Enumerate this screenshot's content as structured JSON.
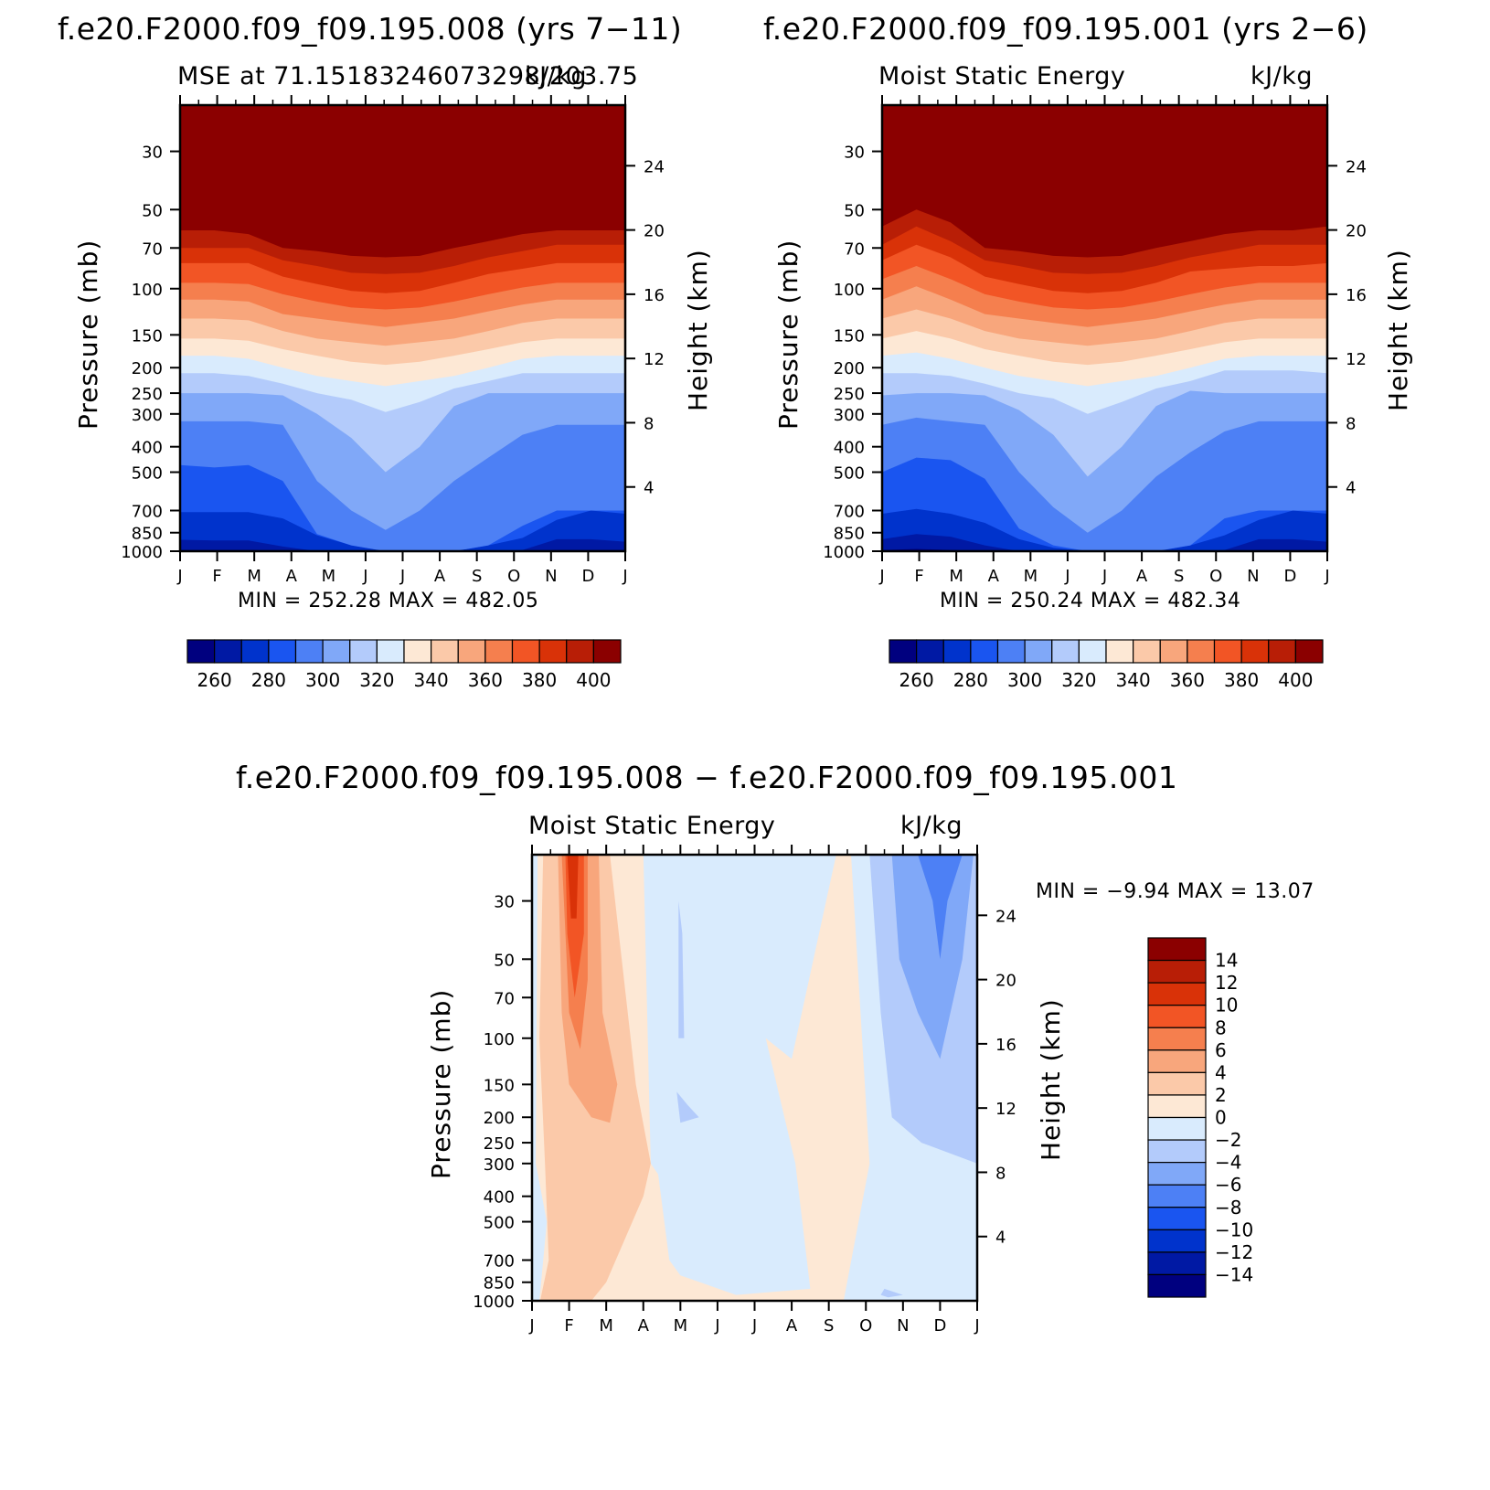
{
  "chart_data": [
    {
      "type": "contour",
      "id": "p1",
      "title": "f.e20.F2000.f09_f09.195.008 (yrs 7−11)",
      "left_label": "MSE at 71.15183246073298/203.75",
      "right_label": "kJ/kg",
      "xlabel": "",
      "ylabel": "Pressure (mb)",
      "ylabel_right": "Height (km)",
      "x_ticks": [
        "J",
        "F",
        "M",
        "A",
        "M",
        "J",
        "J",
        "A",
        "S",
        "O",
        "N",
        "D",
        "J"
      ],
      "y_ticks": [
        30,
        50,
        70,
        100,
        150,
        200,
        250,
        300,
        400,
        500,
        700,
        850,
        1000
      ],
      "y_ticks_right": [
        24,
        20,
        16,
        12,
        8,
        4
      ],
      "ylim": [
        1000,
        20
      ],
      "minmax_text": "MIN = 252.28 MAX = 482.05",
      "levels": [
        260,
        270,
        280,
        290,
        300,
        310,
        320,
        330,
        340,
        350,
        360,
        370,
        380,
        390,
        400
      ],
      "colorbar_labels": [
        "260",
        "280",
        "300",
        "320",
        "340",
        "360",
        "380",
        "400"
      ],
      "boundaries_pressure_mb": [
        [
          990,
          990,
          990,
          995,
          1000,
          1000,
          1000,
          1000,
          1000,
          1000,
          1000,
          990,
          990,
          990
        ],
        [
          905,
          910,
          910,
          960,
          1000,
          1000,
          1000,
          1000,
          1000,
          1000,
          990,
          900,
          900,
          920
        ],
        [
          710,
          710,
          710,
          750,
          870,
          950,
          1000,
          1000,
          1000,
          950,
          890,
          760,
          700,
          720
        ],
        [
          470,
          480,
          470,
          540,
          860,
          950,
          1000,
          1000,
          1000,
          950,
          800,
          700,
          700,
          700
        ],
        [
          320,
          320,
          320,
          330,
          540,
          700,
          830,
          700,
          540,
          440,
          360,
          330,
          330,
          330
        ],
        [
          250,
          250,
          250,
          255,
          300,
          370,
          500,
          400,
          280,
          250,
          250,
          250,
          250,
          250
        ],
        [
          210,
          210,
          215,
          230,
          250,
          265,
          295,
          270,
          240,
          225,
          210,
          210,
          210,
          210
        ],
        [
          180,
          180,
          185,
          200,
          215,
          225,
          235,
          225,
          215,
          200,
          185,
          180,
          180,
          180
        ],
        [
          155,
          155,
          158,
          170,
          180,
          190,
          195,
          190,
          180,
          170,
          160,
          155,
          155,
          155
        ],
        [
          130,
          130,
          132,
          145,
          155,
          160,
          165,
          160,
          155,
          145,
          135,
          130,
          130,
          130
        ],
        [
          110,
          110,
          112,
          125,
          130,
          135,
          140,
          135,
          130,
          122,
          115,
          110,
          110,
          110
        ],
        [
          95,
          95,
          96,
          105,
          112,
          118,
          120,
          118,
          112,
          105,
          99,
          95,
          95,
          95
        ],
        [
          80,
          80,
          80,
          90,
          96,
          102,
          104,
          102,
          95,
          88,
          84,
          80,
          80,
          80
        ],
        [
          70,
          70,
          70,
          78,
          82,
          87,
          88,
          87,
          82,
          76,
          72,
          68,
          68,
          68
        ],
        [
          60,
          60,
          62,
          70,
          72,
          75,
          76,
          75,
          70,
          66,
          62,
          60,
          60,
          60
        ]
      ]
    },
    {
      "type": "contour",
      "id": "p2",
      "title": "f.e20.F2000.f09_f09.195.001 (yrs 2−6)",
      "left_label": "Moist Static Energy",
      "right_label": "kJ/kg",
      "xlabel": "",
      "ylabel": "Pressure (mb)",
      "ylabel_right": "Height (km)",
      "x_ticks": [
        "J",
        "F",
        "M",
        "A",
        "M",
        "J",
        "J",
        "A",
        "S",
        "O",
        "N",
        "D",
        "J"
      ],
      "y_ticks": [
        30,
        50,
        70,
        100,
        150,
        200,
        250,
        300,
        400,
        500,
        700,
        850,
        1000
      ],
      "y_ticks_right": [
        24,
        20,
        16,
        12,
        8,
        4
      ],
      "ylim": [
        1000,
        20
      ],
      "minmax_text": "MIN = 250.24 MAX = 482.34",
      "levels": [
        260,
        270,
        280,
        290,
        300,
        310,
        320,
        330,
        340,
        350,
        360,
        370,
        380,
        390,
        400
      ],
      "colorbar_labels": [
        "260",
        "280",
        "300",
        "320",
        "340",
        "360",
        "380",
        "400"
      ],
      "boundaries_pressure_mb": [
        [
          990,
          980,
          990,
          995,
          1000,
          1000,
          1000,
          1000,
          1000,
          1000,
          1000,
          990,
          990,
          990
        ],
        [
          900,
          860,
          880,
          950,
          1000,
          1000,
          1000,
          1000,
          1000,
          1000,
          990,
          900,
          900,
          920
        ],
        [
          720,
          690,
          720,
          780,
          900,
          970,
          1000,
          1000,
          1000,
          950,
          870,
          760,
          700,
          720
        ],
        [
          500,
          440,
          450,
          530,
          820,
          950,
          1000,
          1000,
          1000,
          950,
          750,
          700,
          700,
          700
        ],
        [
          330,
          310,
          320,
          330,
          500,
          680,
          850,
          700,
          520,
          420,
          350,
          320,
          320,
          320
        ],
        [
          255,
          250,
          250,
          255,
          290,
          360,
          520,
          400,
          280,
          245,
          250,
          250,
          250,
          250
        ],
        [
          210,
          210,
          215,
          230,
          250,
          262,
          300,
          270,
          240,
          225,
          205,
          205,
          205,
          210
        ],
        [
          180,
          175,
          185,
          200,
          215,
          225,
          235,
          225,
          215,
          200,
          185,
          180,
          180,
          180
        ],
        [
          155,
          145,
          155,
          170,
          180,
          190,
          195,
          190,
          180,
          170,
          160,
          155,
          155,
          155
        ],
        [
          130,
          120,
          130,
          145,
          155,
          160,
          165,
          160,
          155,
          145,
          135,
          130,
          130,
          130
        ],
        [
          110,
          98,
          110,
          125,
          130,
          135,
          140,
          135,
          130,
          122,
          115,
          110,
          110,
          110
        ],
        [
          92,
          82,
          92,
          105,
          112,
          118,
          120,
          118,
          112,
          105,
          99,
          95,
          95,
          95
        ],
        [
          78,
          68,
          76,
          90,
          96,
          102,
          104,
          102,
          95,
          86,
          84,
          82,
          82,
          80
        ],
        [
          68,
          58,
          66,
          78,
          82,
          87,
          88,
          87,
          82,
          76,
          72,
          68,
          68,
          68
        ],
        [
          58,
          50,
          56,
          70,
          72,
          75,
          76,
          75,
          70,
          66,
          62,
          60,
          60,
          58
        ]
      ]
    },
    {
      "type": "contour",
      "id": "p3",
      "title": "f.e20.F2000.f09_f09.195.008 − f.e20.F2000.f09_f09.195.001",
      "left_label": "Moist Static Energy",
      "right_label": "kJ/kg",
      "xlabel": "",
      "ylabel": "Pressure (mb)",
      "ylabel_right": "Height (km)",
      "x_ticks": [
        "J",
        "F",
        "M",
        "A",
        "M",
        "J",
        "J",
        "A",
        "S",
        "O",
        "N",
        "D",
        "J"
      ],
      "y_ticks": [
        30,
        50,
        70,
        100,
        150,
        200,
        250,
        300,
        400,
        500,
        700,
        850,
        1000
      ],
      "y_ticks_right": [
        24,
        20,
        16,
        12,
        8,
        4
      ],
      "ylim": [
        1000,
        20
      ],
      "minmax_text": "MIN =   −9.94 MAX =   13.07",
      "levels": [
        -14,
        -12,
        -10,
        -8,
        -6,
        -4,
        -2,
        0,
        2,
        4,
        6,
        8,
        10,
        12,
        14
      ],
      "colorbar_labels": [
        "14",
        "12",
        "10",
        "8",
        "6",
        "4",
        "2",
        "0",
        "−2",
        "−4",
        "−6",
        "−8",
        "−10",
        "−12",
        "−14"
      ],
      "regions": [
        {
          "value": 1,
          "pts": [
            [
              0.15,
              20
            ],
            [
              3.0,
              20
            ],
            [
              3.2,
              300
            ],
            [
              3.4,
              330
            ],
            [
              3.7,
              700
            ],
            [
              4.0,
              800
            ],
            [
              5.5,
              950
            ],
            [
              7.5,
              900
            ],
            [
              7.1,
              300
            ],
            [
              6.3,
              100
            ],
            [
              7.0,
              120
            ],
            [
              8.2,
              20
            ],
            [
              8.6,
              20
            ],
            [
              9.1,
              300
            ],
            [
              8.4,
              1000
            ],
            [
              0.2,
              1000
            ],
            [
              0.4,
              500
            ],
            [
              0.1,
              300
            ]
          ]
        },
        {
          "value": 3,
          "pts": [
            [
              0.3,
              20
            ],
            [
              2.1,
              20
            ],
            [
              2.8,
              150
            ],
            [
              3.2,
              300
            ],
            [
              3.0,
              400
            ],
            [
              2.0,
              850
            ],
            [
              1.6,
              1000
            ],
            [
              0.22,
              1000
            ],
            [
              0.45,
              700
            ],
            [
              0.35,
              300
            ],
            [
              0.2,
              100
            ]
          ]
        },
        {
          "value": 5,
          "pts": [
            [
              0.7,
              20
            ],
            [
              1.8,
              20
            ],
            [
              1.9,
              80
            ],
            [
              2.3,
              150
            ],
            [
              2.1,
              210
            ],
            [
              1.6,
              200
            ],
            [
              1.0,
              150
            ],
            [
              0.8,
              80
            ]
          ]
        },
        {
          "value": 7,
          "pts": [
            [
              0.8,
              20
            ],
            [
              1.5,
              20
            ],
            [
              1.5,
              60
            ],
            [
              1.3,
              110
            ],
            [
              1.0,
              80
            ]
          ]
        },
        {
          "value": 9,
          "pts": [
            [
              0.9,
              20
            ],
            [
              1.4,
              20
            ],
            [
              1.4,
              40
            ],
            [
              1.15,
              70
            ],
            [
              0.95,
              40
            ]
          ]
        },
        {
          "value": 11,
          "pts": [
            [
              0.95,
              20
            ],
            [
              1.25,
              20
            ],
            [
              1.2,
              35
            ],
            [
              1.05,
              35
            ]
          ]
        },
        {
          "value": -3,
          "pts": [
            [
              9.1,
              20
            ],
            [
              12,
              20
            ],
            [
              12,
              300
            ],
            [
              10.5,
              250
            ],
            [
              9.7,
              200
            ],
            [
              9.4,
              80
            ]
          ]
        },
        {
          "value": -5,
          "pts": [
            [
              9.7,
              20
            ],
            [
              11.9,
              20
            ],
            [
              11.6,
              50
            ],
            [
              11.0,
              120
            ],
            [
              10.4,
              80
            ],
            [
              9.9,
              50
            ]
          ]
        },
        {
          "value": -7,
          "pts": [
            [
              10.4,
              20
            ],
            [
              11.6,
              20
            ],
            [
              11.2,
              30
            ],
            [
              11.0,
              50
            ],
            [
              10.8,
              30
            ]
          ]
        },
        {
          "value": -3,
          "pts": [
            [
              3.9,
              160
            ],
            [
              4.2,
              180
            ],
            [
              4.5,
              200
            ],
            [
              4.0,
              210
            ]
          ]
        },
        {
          "value": -3,
          "pts": [
            [
              3.95,
              30
            ],
            [
              4.05,
              40
            ],
            [
              4.1,
              100
            ],
            [
              3.95,
              100
            ]
          ]
        },
        {
          "value": -3,
          "pts": [
            [
              9.5,
              900
            ],
            [
              10.0,
              950
            ],
            [
              9.6,
              970
            ],
            [
              9.4,
              950
            ]
          ]
        }
      ]
    }
  ]
}
